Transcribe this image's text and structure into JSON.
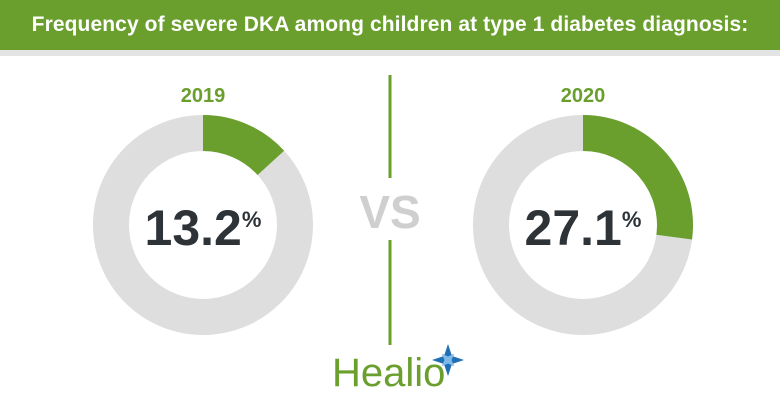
{
  "header": {
    "title": "Frequency of severe DKA among children at type 1 diabetes diagnosis:"
  },
  "vs_label": "VS",
  "logo": {
    "text": "Healio"
  },
  "colors": {
    "accent": "#6a9f2d",
    "track": "#dedede",
    "text": "#2e3338",
    "vs": "#cfcfcf"
  },
  "chart_data": {
    "type": "pie",
    "title": "Frequency of severe DKA among children at type 1 diabetes diagnosis:",
    "charts": [
      {
        "year": "2019",
        "value": 13.2,
        "value_label": "13.2",
        "unit": "%"
      },
      {
        "year": "2020",
        "value": 27.1,
        "value_label": "27.1",
        "unit": "%"
      }
    ]
  }
}
